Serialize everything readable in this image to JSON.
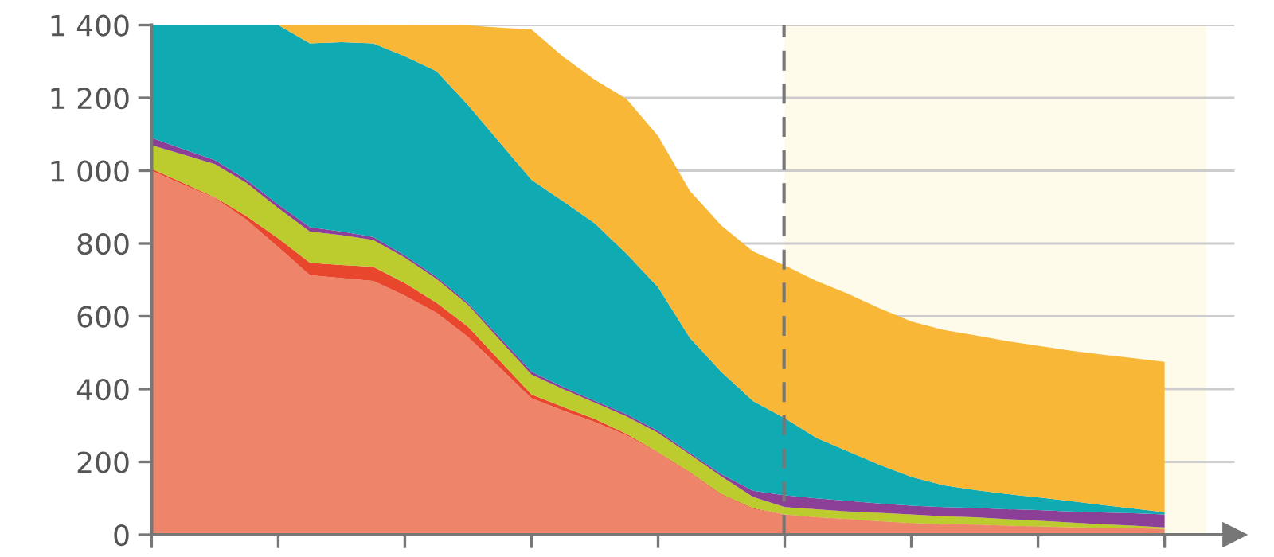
{
  "chart_data": {
    "type": "area",
    "stacked": true,
    "tick_labels": "y",
    "grid": "y",
    "categories": [
      null,
      null,
      null,
      null,
      null,
      null,
      null,
      null,
      null,
      null,
      null,
      null,
      null,
      null,
      null,
      null,
      null,
      null,
      null,
      null,
      null,
      null,
      null,
      null,
      null,
      null,
      null,
      null,
      null,
      null,
      null,
      null,
      null
    ],
    "ylim": [
      0,
      1400
    ],
    "yticks": [
      0,
      200,
      400,
      600,
      800,
      {
        "value": 1000,
        "label": "1 000"
      },
      {
        "value": 1200,
        "label": "1 200"
      },
      {
        "value": 1400,
        "label": "1 400"
      }
    ],
    "series": [
      {
        "color": "#ee846a",
        "values": [
          1000,
          962,
          925,
          865,
          790,
          713,
          705,
          697,
          657,
          610,
          543,
          459,
          375,
          341,
          310,
          273,
          225,
          170,
          110,
          71,
          55,
          47,
          42,
          36,
          31,
          28,
          27,
          24,
          22,
          20,
          18,
          17,
          15
        ]
      },
      {
        "color": "#e8462d",
        "values": [
          5,
          4,
          2,
          10,
          24,
          34,
          36,
          39,
          34,
          27,
          28,
          19,
          10,
          10,
          8,
          4,
          2,
          2,
          2,
          2,
          1,
          1,
          1,
          1,
          1,
          1,
          1,
          1,
          1,
          1,
          1,
          1,
          1
        ]
      },
      {
        "color": "#bccb2d",
        "values": [
          65,
          78,
          91,
          91,
          83,
          86,
          82,
          74,
          70,
          66,
          60,
          57,
          55,
          49,
          45,
          48,
          53,
          49,
          48,
          31,
          20,
          22,
          21,
          23,
          24,
          22,
          20,
          18,
          16,
          13,
          10,
          7,
          4
        ]
      },
      {
        "color": "#8b3f96",
        "values": [
          20,
          15,
          11,
          9,
          10,
          12,
          10,
          8,
          6,
          5,
          5,
          7,
          8,
          6,
          5,
          6,
          5,
          4,
          6,
          17,
          32,
          30,
          29,
          26,
          24,
          25,
          26,
          27,
          29,
          30,
          32,
          34,
          36
        ]
      },
      {
        "color": "#10aab3",
        "values": [
          310,
          340,
          371,
          425,
          493,
          505,
          520,
          532,
          547,
          565,
          544,
          535,
          527,
          510,
          487,
          441,
          395,
          316,
          281,
          246,
          212,
          166,
          136,
          106,
          79,
          60,
          49,
          42,
          35,
          29,
          21,
          13,
          6
        ]
      },
      {
        "color": "#f9b738",
        "values": [
          0,
          0,
          0,
          0,
          0,
          50,
          50,
          50,
          86,
          131,
          219,
          316,
          413,
          397,
          395,
          425,
          415,
          404,
          402,
          411,
          420,
          431,
          433,
          430,
          427,
          427,
          425,
          420,
          416,
          413,
          413,
          413,
          413
        ]
      }
    ]
  }
}
